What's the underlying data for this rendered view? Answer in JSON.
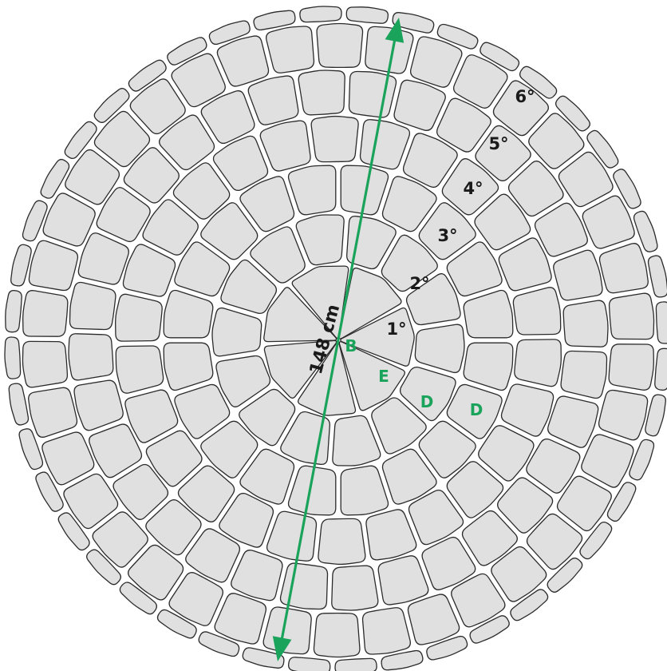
{
  "diagram": {
    "dimension": {
      "label": "148 cm"
    },
    "ring_labels": [
      "1°",
      "2°",
      "3°",
      "4°",
      "5°",
      "6°"
    ],
    "piece_labels": [
      "B",
      "E",
      "D",
      "D"
    ],
    "colors": {
      "stone_fill": "#e0e0e0",
      "stone_stroke": "#2b2b2b",
      "accent": "#1aa35a",
      "label_dark": "#1a1a1a"
    }
  }
}
